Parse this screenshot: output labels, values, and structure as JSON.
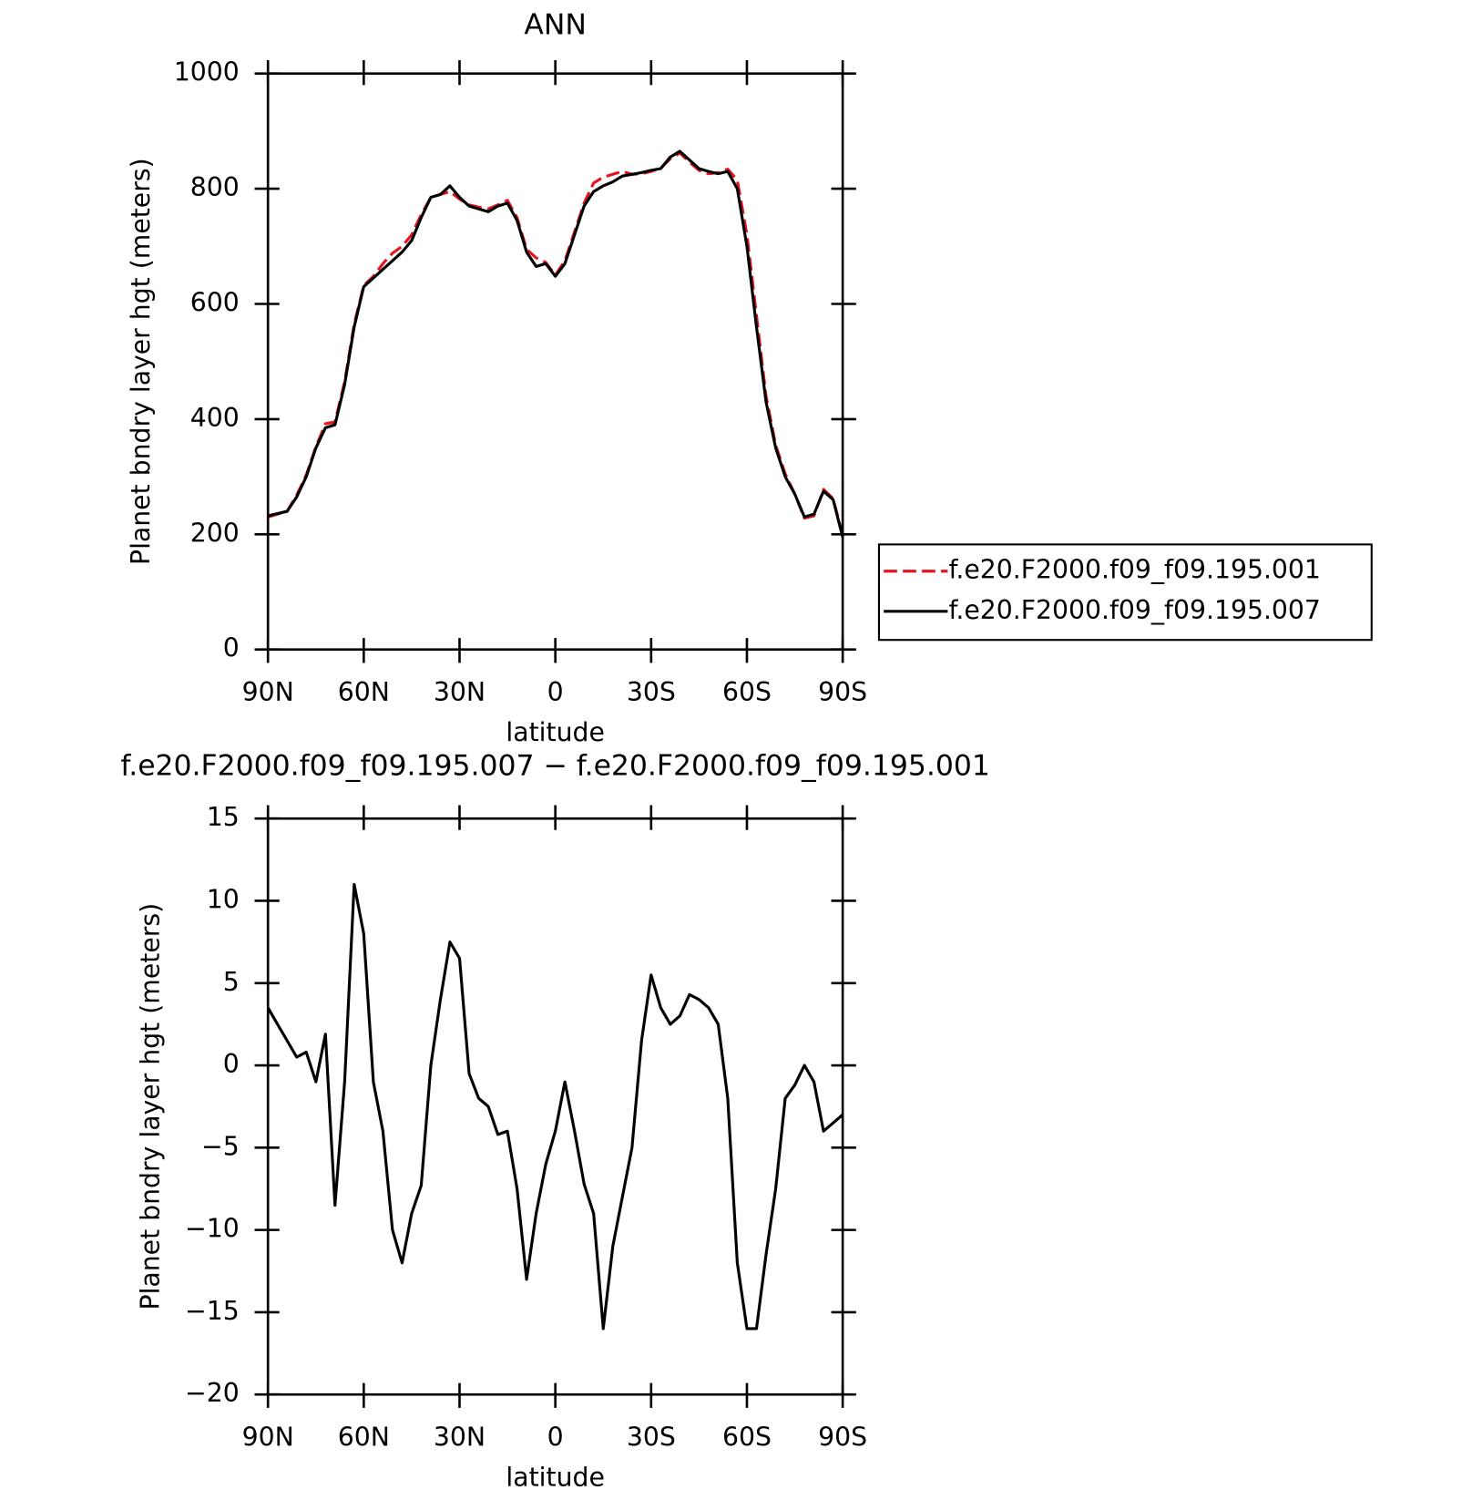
{
  "chart_data": [
    {
      "type": "line",
      "title": "ANN",
      "xlabel": "latitude",
      "ylabel": "Planet bndry layer hgt (meters)",
      "x": [
        90,
        87,
        84,
        81,
        78,
        75,
        72,
        69,
        66,
        63,
        60,
        57,
        54,
        51,
        48,
        45,
        42,
        39,
        36,
        33,
        30,
        27,
        24,
        21,
        18,
        15,
        12,
        9,
        6,
        3,
        0,
        -3,
        -6,
        -9,
        -12,
        -15,
        -18,
        -21,
        -24,
        -27,
        -30,
        -33,
        -36,
        -39,
        -42,
        -45,
        -48,
        -51,
        -54,
        -57,
        -60,
        -63,
        -66,
        -69,
        -72,
        -75,
        -78,
        -81,
        -84,
        -87,
        -90
      ],
      "xlim": [
        90,
        -90
      ],
      "xticks": [
        {
          "value": 90,
          "label": "90N"
        },
        {
          "value": 60,
          "label": "60N"
        },
        {
          "value": 30,
          "label": "30N"
        },
        0,
        {
          "value": -30,
          "label": "30S"
        },
        {
          "value": -60,
          "label": "60S"
        },
        {
          "value": -90,
          "label": "90S"
        }
      ],
      "ylim": [
        0,
        1000
      ],
      "yticks": [
        0,
        200,
        400,
        600,
        800,
        1000
      ],
      "legend": "right",
      "series": [
        {
          "name": "f.e20.F2000.f09_f09.195.001",
          "color": "#e8141c",
          "dashed": true,
          "values": [
            230,
            235,
            240,
            268,
            303,
            352,
            392,
            395,
            465,
            565,
            632,
            648,
            670,
            688,
            700,
            720,
            755,
            785,
            790,
            795,
            782,
            772,
            768,
            765,
            772,
            780,
            750,
            695,
            680,
            672,
            650,
            675,
            725,
            775,
            810,
            820,
            825,
            830,
            825,
            826,
            830,
            836,
            852,
            862,
            846,
            832,
            826,
            828,
            834,
            815,
            720,
            580,
            440,
            355,
            305,
            270,
            228,
            232,
            278,
            262,
            198
          ]
        },
        {
          "name": "f.e20.F2000.f09_f09.195.007",
          "color": "#000000",
          "dashed": false,
          "values": [
            232,
            236,
            240,
            265,
            300,
            350,
            385,
            390,
            460,
            560,
            630,
            645,
            660,
            675,
            690,
            710,
            750,
            785,
            790,
            805,
            785,
            770,
            765,
            760,
            770,
            775,
            745,
            690,
            665,
            670,
            648,
            670,
            720,
            770,
            795,
            805,
            812,
            822,
            825,
            828,
            832,
            835,
            855,
            865,
            850,
            835,
            830,
            826,
            830,
            800,
            700,
            560,
            430,
            350,
            300,
            270,
            230,
            235,
            275,
            260,
            195
          ]
        }
      ]
    },
    {
      "type": "line",
      "title": "f.e20.F2000.f09_f09.195.007 − f.e20.F2000.f09_f09.195.001",
      "xlabel": "latitude",
      "ylabel": "Planet bndry layer hgt (meters)",
      "x": [
        90,
        87,
        84,
        81,
        78,
        75,
        72,
        69,
        66,
        63,
        60,
        57,
        54,
        51,
        48,
        45,
        42,
        39,
        36,
        33,
        30,
        27,
        24,
        21,
        18,
        15,
        12,
        9,
        6,
        3,
        0,
        -3,
        -6,
        -9,
        -12,
        -15,
        -18,
        -21,
        -24,
        -27,
        -30,
        -33,
        -36,
        -39,
        -42,
        -45,
        -48,
        -51,
        -54,
        -57,
        -60,
        -63,
        -66,
        -69,
        -72,
        -75,
        -78,
        -81,
        -84,
        -87,
        -90
      ],
      "xlim": [
        90,
        -90
      ],
      "xticks": [
        {
          "value": 90,
          "label": "90N"
        },
        {
          "value": 60,
          "label": "60N"
        },
        {
          "value": 30,
          "label": "30N"
        },
        0,
        {
          "value": -30,
          "label": "30S"
        },
        {
          "value": -60,
          "label": "60S"
        },
        {
          "value": -90,
          "label": "90S"
        }
      ],
      "ylim": [
        -20,
        15
      ],
      "yticks": [
        {
          "value": -20,
          "label": "−20"
        },
        {
          "value": -15,
          "label": "−15"
        },
        {
          "value": -10,
          "label": "−10"
        },
        {
          "value": -5,
          "label": "−5"
        },
        0,
        5,
        10,
        15
      ],
      "series": [
        {
          "color": "#000000",
          "dashed": false,
          "values": [
            3.5,
            2.5,
            1.5,
            0.5,
            0.8,
            -1,
            1.9,
            -8.5,
            -1,
            11,
            8,
            -1,
            -4,
            -10,
            -12,
            -9,
            -7.3,
            0,
            4,
            7.5,
            6.5,
            -0.5,
            -2,
            -2.5,
            -4.2,
            -4,
            -7.5,
            -13,
            -9,
            -6,
            -4,
            -1,
            -4,
            -7.2,
            -9,
            -16,
            -11,
            -8,
            -5,
            1.5,
            5.5,
            3.5,
            2.5,
            3,
            4.3,
            4,
            3.5,
            2.5,
            -2,
            -12,
            -16,
            -16,
            -11.5,
            -7.5,
            -2,
            -1.2,
            0,
            -1,
            -4,
            -3.5,
            -3
          ]
        }
      ]
    }
  ]
}
